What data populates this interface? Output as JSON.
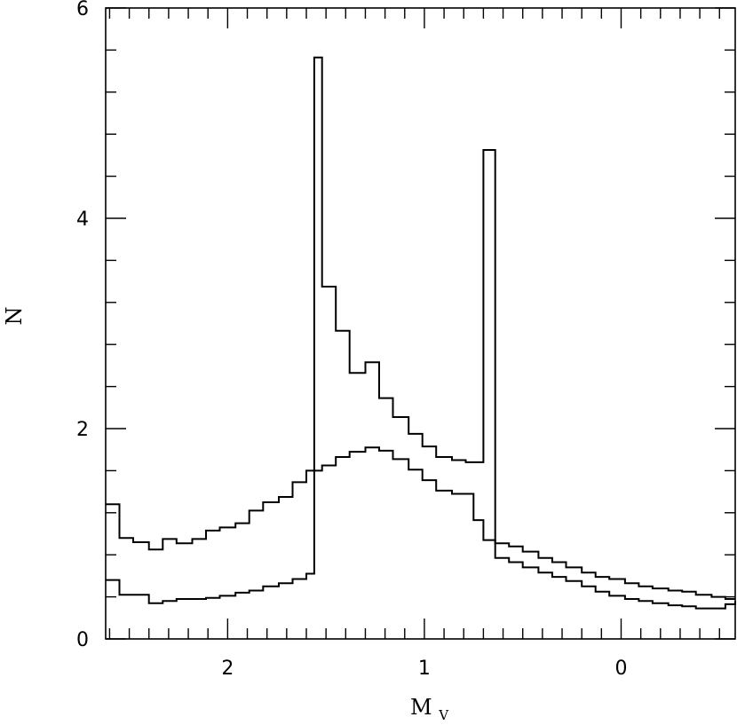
{
  "chart_data": {
    "type": "histogram",
    "xlabel": "M",
    "xlabel_sub": "V",
    "ylabel": "N",
    "xlim": [
      2.62,
      -0.58
    ],
    "ylim": [
      0,
      6
    ],
    "x_ticks": [
      2,
      1,
      0
    ],
    "x_tick_labels": [
      "2",
      "1",
      "0"
    ],
    "y_ticks": [
      0,
      2,
      4,
      6
    ],
    "y_tick_labels": [
      "0",
      "2",
      "4",
      "6"
    ],
    "series": [
      {
        "x": [
          2.62,
          2.55,
          2.48,
          2.4,
          2.33,
          2.26,
          2.18,
          2.11,
          2.04,
          1.96,
          1.89,
          1.82,
          1.74,
          1.67,
          1.6,
          1.56,
          1.52,
          1.45,
          1.38,
          1.3,
          1.23,
          1.16,
          1.08,
          1.01,
          0.94,
          0.86,
          0.79,
          0.75,
          0.7,
          0.64,
          0.57,
          0.5,
          0.42,
          0.35,
          0.28,
          0.2,
          0.13,
          0.06,
          -0.02,
          -0.09,
          -0.16,
          -0.24,
          -0.31,
          -0.38,
          -0.46,
          -0.53,
          -0.58
        ],
        "values": [
          1.28,
          0.96,
          0.92,
          0.85,
          0.95,
          0.91,
          0.95,
          1.03,
          1.06,
          1.1,
          1.22,
          1.3,
          1.35,
          1.49,
          1.6,
          1.6,
          1.65,
          1.73,
          1.78,
          1.82,
          1.79,
          1.71,
          1.61,
          1.51,
          1.41,
          1.38,
          1.38,
          1.13,
          0.94,
          0.91,
          0.88,
          0.83,
          0.77,
          0.73,
          0.68,
          0.63,
          0.59,
          0.57,
          0.53,
          0.5,
          0.48,
          0.46,
          0.45,
          0.42,
          0.4,
          0.38,
          0.38
        ]
      },
      {
        "x": [
          2.62,
          2.55,
          2.48,
          2.4,
          2.33,
          2.26,
          2.18,
          2.11,
          2.04,
          1.96,
          1.89,
          1.82,
          1.74,
          1.67,
          1.6,
          1.56,
          1.52,
          1.45,
          1.38,
          1.3,
          1.23,
          1.16,
          1.08,
          1.01,
          0.94,
          0.86,
          0.79,
          0.7,
          0.64,
          0.57,
          0.5,
          0.42,
          0.35,
          0.28,
          0.2,
          0.13,
          0.06,
          -0.02,
          -0.09,
          -0.16,
          -0.24,
          -0.31,
          -0.38,
          -0.46,
          -0.53,
          -0.58
        ],
        "values": [
          0.56,
          0.42,
          0.42,
          0.34,
          0.36,
          0.38,
          0.38,
          0.39,
          0.41,
          0.44,
          0.46,
          0.5,
          0.53,
          0.57,
          0.62,
          5.53,
          3.35,
          2.93,
          2.53,
          2.63,
          2.29,
          2.11,
          1.95,
          1.83,
          1.73,
          1.7,
          1.68,
          4.65,
          0.77,
          0.73,
          0.68,
          0.63,
          0.59,
          0.55,
          0.5,
          0.45,
          0.41,
          0.38,
          0.36,
          0.34,
          0.32,
          0.31,
          0.29,
          0.29,
          0.33,
          0.36
        ]
      }
    ]
  }
}
